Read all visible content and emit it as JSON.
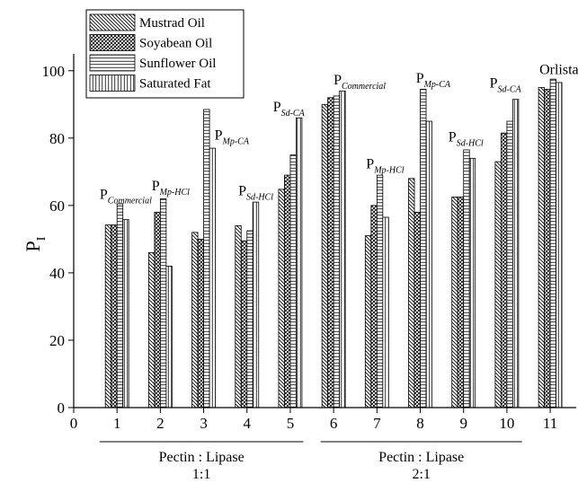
{
  "chart_data": {
    "type": "bar",
    "ylabel": "P",
    "ylabel_subscript": "I",
    "ylim": [
      0,
      105
    ],
    "xlim": [
      0,
      11.6
    ],
    "yticks": [
      0,
      20,
      40,
      60,
      80,
      100
    ],
    "xticks": [
      0,
      1,
      2,
      3,
      4,
      5,
      6,
      7,
      8,
      9,
      10,
      11
    ],
    "grid": false,
    "legend_position": "top-left",
    "categories": [
      "1",
      "2",
      "3",
      "4",
      "5",
      "6",
      "7",
      "8",
      "9",
      "10",
      "11"
    ],
    "series": [
      {
        "name": "Mustrad Oil",
        "pattern": "diag-down",
        "values": [
          54.2,
          46.0,
          52.0,
          54.0,
          64.8,
          90.0,
          51.0,
          68.0,
          62.5,
          73.0,
          95.0
        ]
      },
      {
        "name": "Soyabean Oil",
        "pattern": "crosshatch",
        "values": [
          54.2,
          58.0,
          50.0,
          49.5,
          69.0,
          92.0,
          60.0,
          58.0,
          62.5,
          81.5,
          94.5
        ]
      },
      {
        "name": "Sunflower Oil",
        "pattern": "horizontal",
        "values": [
          60.5,
          62.0,
          88.5,
          52.5,
          75.0,
          92.5,
          69.0,
          94.5,
          76.5,
          85.0,
          97.5
        ]
      },
      {
        "name": "Saturated Fat",
        "pattern": "vertical",
        "values": [
          55.8,
          42.0,
          77.0,
          61.0,
          86.0,
          94.0,
          56.5,
          85.0,
          74.0,
          91.5,
          96.5
        ]
      }
    ],
    "annotations": [
      {
        "main": "P",
        "sub": "Commercial",
        "x": 0.6,
        "y": 62
      },
      {
        "main": "P",
        "sub": "Mp-HCl",
        "x": 1.8,
        "y": 64.5
      },
      {
        "main": "P",
        "sub": "Mp-CA",
        "x": 3.25,
        "y": 79.5
      },
      {
        "main": "P",
        "sub": "Sd-HCl",
        "x": 3.8,
        "y": 63
      },
      {
        "main": "P",
        "sub": "Sd-CA",
        "x": 4.6,
        "y": 88
      },
      {
        "main": "P",
        "sub": "Commercial",
        "x": 6.0,
        "y": 96
      },
      {
        "main": "P",
        "sub": "Mp-HCl",
        "x": 6.75,
        "y": 71
      },
      {
        "main": "P",
        "sub": "Mp-CA",
        "x": 7.9,
        "y": 96.5
      },
      {
        "main": "P",
        "sub": "Sd-HCl",
        "x": 8.65,
        "y": 79
      },
      {
        "main": "P",
        "sub": "Sd-CA",
        "x": 9.6,
        "y": 95
      },
      {
        "main": "Orlistat",
        "sub": "",
        "x": 11.25,
        "y": 99
      }
    ],
    "groups": [
      {
        "label": "Pectin : Lipase",
        "ratio": "1:1",
        "from": 0.6,
        "to": 5.3
      },
      {
        "label": "Pectin : Lipase",
        "ratio": "2:1",
        "from": 5.7,
        "to": 10.35
      }
    ]
  }
}
